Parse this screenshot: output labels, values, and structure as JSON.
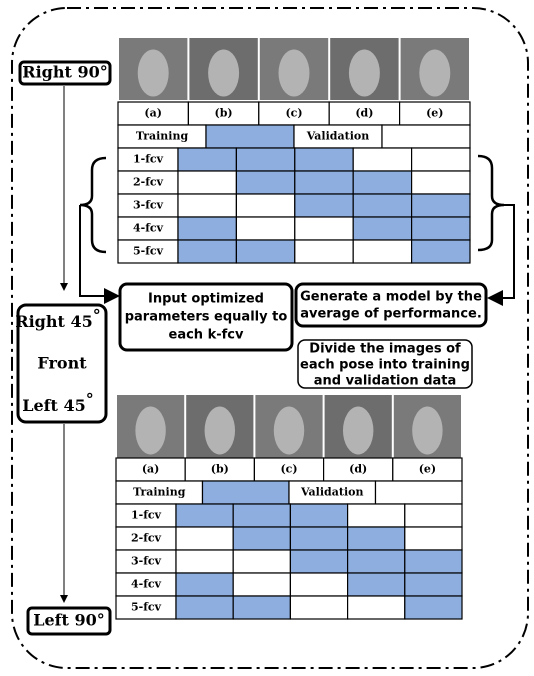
{
  "poses": {
    "right90": "Right 90°",
    "right45": "Right 45",
    "right45_deg": "°",
    "front": "Front",
    "left45": "Left 45",
    "left45_deg": "°",
    "left90": "Left 90°"
  },
  "tables": [
    {
      "columns": [
        "(a)",
        "(b)",
        "(c)",
        "(d)",
        "(e)"
      ],
      "split": [
        "Training",
        "Validation"
      ],
      "folds": [
        "1-fcv",
        "2-fcv",
        "3-fcv",
        "4-fcv",
        "5-fcv"
      ]
    },
    {
      "columns": [
        "(a)",
        "(b)",
        "(c)",
        "(d)",
        "(e)"
      ],
      "split": [
        "Training",
        "Validation"
      ],
      "folds": [
        "1-fcv",
        "2-fcv",
        "3-fcv",
        "4-fcv",
        "5-fcv"
      ]
    }
  ],
  "boxes": {
    "input": [
      "Input optimized",
      "parameters equally to",
      "each k-fcv"
    ],
    "generate": [
      "Generate a model by the",
      "average of performance."
    ],
    "divide": [
      "Divide the images of",
      "each pose into training",
      "and validation data"
    ]
  }
}
